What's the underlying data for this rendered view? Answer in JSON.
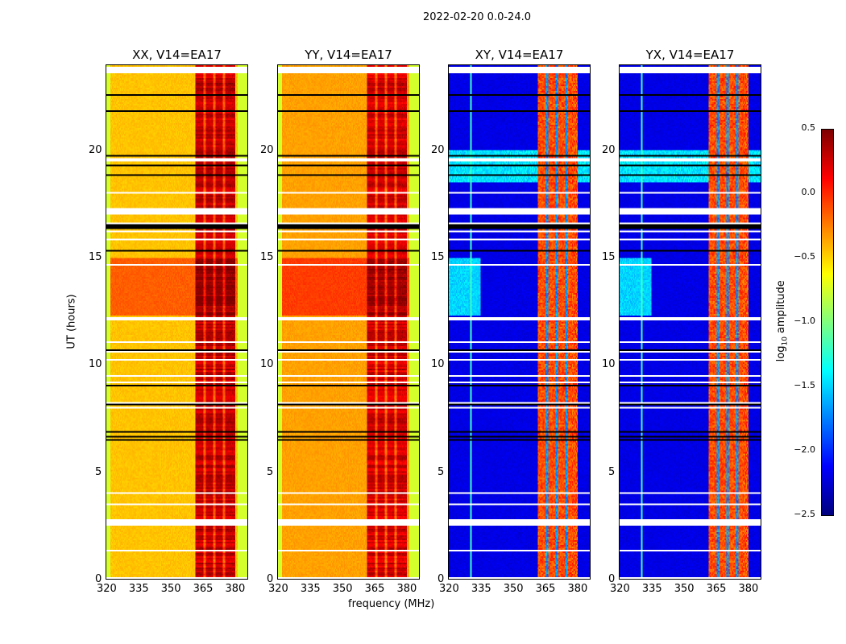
{
  "chart_data": {
    "type": "heatmap",
    "title": "2022-02-20 0.0-24.0",
    "xlabel": "frequency (MHz)",
    "ylabel": "UT (hours)",
    "xlim": [
      320,
      386.6
    ],
    "ylim": [
      0,
      24
    ],
    "xticks": [
      "320",
      "335",
      "350",
      "365",
      "380"
    ],
    "yticks": [
      "0",
      "5",
      "10",
      "15",
      "20"
    ],
    "panels": [
      {
        "title": "XX, V14=EA17",
        "kind": "parallel",
        "base": -0.45,
        "band": 0.1
      },
      {
        "title": "YY, V14=EA17",
        "kind": "parallel",
        "base": -0.35,
        "band": 0.05
      },
      {
        "title": "XY, V14=EA17",
        "kind": "cross",
        "base": -2.2,
        "band": -0.3
      },
      {
        "title": "YX, V14=EA17",
        "kind": "cross",
        "base": -2.2,
        "band": -0.3
      }
    ],
    "band_mhz": [
      362,
      381
    ],
    "flagged_hours": [
      [
        2.5,
        2.8
      ],
      [
        17.0,
        17.3
      ],
      [
        23.6,
        23.9
      ],
      [
        12.05,
        12.2
      ]
    ],
    "colorbar": {
      "label": "log10 amplitude",
      "range": [
        -2.5,
        0.5
      ],
      "ticks": [
        "0.5",
        "0.0",
        "−0.5",
        "−1.0",
        "−1.5",
        "−2.0",
        "−2.5"
      ],
      "colormap": "jet"
    }
  }
}
